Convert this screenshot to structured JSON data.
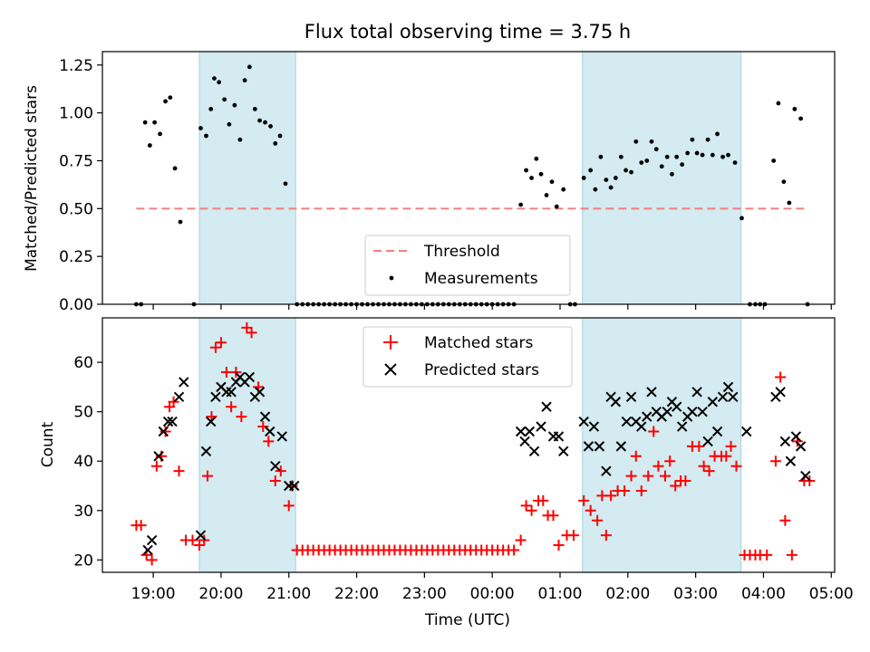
{
  "chart_data": {
    "type": "scatter",
    "title": "Flux total observing time = 3.75 h",
    "xlabel": "Time (UTC)",
    "x_unit": "hours since 18:00 UTC",
    "xlim": [
      0.25,
      11.05
    ],
    "x_ticks": [
      {
        "value": 1,
        "label": "19:00"
      },
      {
        "value": 2,
        "label": "20:00"
      },
      {
        "value": 3,
        "label": "21:00"
      },
      {
        "value": 4,
        "label": "22:00"
      },
      {
        "value": 5,
        "label": "23:00"
      },
      {
        "value": 6,
        "label": "00:00"
      },
      {
        "value": 7,
        "label": "01:00"
      },
      {
        "value": 8,
        "label": "02:00"
      },
      {
        "value": 9,
        "label": "03:00"
      },
      {
        "value": 10,
        "label": "04:00"
      },
      {
        "value": 11,
        "label": "05:00"
      }
    ],
    "shaded_intervals": [
      [
        1.68,
        3.1
      ],
      [
        7.33,
        9.67
      ]
    ],
    "shade_color": "#d3ebf1",
    "top": {
      "ylabel": "Matched/Predicted stars",
      "ylim": [
        0,
        1.32
      ],
      "yticks": [
        "0.00",
        "0.25",
        "0.50",
        "0.75",
        "1.00",
        "1.25"
      ],
      "threshold": {
        "value": 0.5,
        "x_range": [
          0.75,
          10.65
        ],
        "color": "#f08080"
      },
      "legend": {
        "threshold_label": "Threshold",
        "measurements_label": "Measurements",
        "position": "lower-center"
      },
      "measurements": [
        [
          0.75,
          0
        ],
        [
          0.82,
          0
        ],
        [
          0.88,
          0.95
        ],
        [
          0.95,
          0.83
        ],
        [
          1.02,
          0.95
        ],
        [
          1.1,
          0.89
        ],
        [
          1.18,
          1.06
        ],
        [
          1.25,
          1.08
        ],
        [
          1.32,
          0.71
        ],
        [
          1.4,
          0.43
        ],
        [
          1.6,
          0
        ],
        [
          1.7,
          0.92
        ],
        [
          1.78,
          0.88
        ],
        [
          1.85,
          1.02
        ],
        [
          1.9,
          1.18
        ],
        [
          1.97,
          1.16
        ],
        [
          2.05,
          1.07
        ],
        [
          2.12,
          0.94
        ],
        [
          2.2,
          1.04
        ],
        [
          2.28,
          0.86
        ],
        [
          2.35,
          1.17
        ],
        [
          2.42,
          1.24
        ],
        [
          2.5,
          1.02
        ],
        [
          2.57,
          0.96
        ],
        [
          2.65,
          0.95
        ],
        [
          2.73,
          0.93
        ],
        [
          2.8,
          0.84
        ],
        [
          2.87,
          0.88
        ],
        [
          2.95,
          0.63
        ],
        [
          3.12,
          0
        ],
        [
          3.2,
          0
        ],
        [
          3.28,
          0
        ],
        [
          3.36,
          0
        ],
        [
          3.44,
          0
        ],
        [
          3.52,
          0
        ],
        [
          3.6,
          0
        ],
        [
          3.68,
          0
        ],
        [
          3.76,
          0
        ],
        [
          3.84,
          0
        ],
        [
          3.92,
          0
        ],
        [
          4.0,
          0
        ],
        [
          4.08,
          0
        ],
        [
          4.16,
          0
        ],
        [
          4.24,
          0
        ],
        [
          4.32,
          0
        ],
        [
          4.4,
          0
        ],
        [
          4.48,
          0
        ],
        [
          4.56,
          0
        ],
        [
          4.64,
          0
        ],
        [
          4.72,
          0
        ],
        [
          4.8,
          0
        ],
        [
          4.88,
          0
        ],
        [
          4.96,
          0
        ],
        [
          5.04,
          0
        ],
        [
          5.12,
          0
        ],
        [
          5.2,
          0
        ],
        [
          5.28,
          0
        ],
        [
          5.36,
          0
        ],
        [
          5.44,
          0
        ],
        [
          5.52,
          0
        ],
        [
          5.6,
          0
        ],
        [
          5.68,
          0
        ],
        [
          5.76,
          0
        ],
        [
          5.84,
          0
        ],
        [
          5.92,
          0
        ],
        [
          6.0,
          0
        ],
        [
          6.08,
          0
        ],
        [
          6.16,
          0
        ],
        [
          6.24,
          0
        ],
        [
          6.32,
          0
        ],
        [
          6.42,
          0.52
        ],
        [
          6.5,
          0.7
        ],
        [
          6.58,
          0.66
        ],
        [
          6.65,
          0.76
        ],
        [
          6.72,
          0.68
        ],
        [
          6.8,
          0.57
        ],
        [
          6.88,
          0.64
        ],
        [
          6.95,
          0.51
        ],
        [
          7.05,
          0.6
        ],
        [
          7.15,
          0
        ],
        [
          7.22,
          0
        ],
        [
          7.35,
          0.66
        ],
        [
          7.45,
          0.7
        ],
        [
          7.52,
          0.6
        ],
        [
          7.6,
          0.77
        ],
        [
          7.68,
          0.65
        ],
        [
          7.75,
          0.61
        ],
        [
          7.82,
          0.66
        ],
        [
          7.9,
          0.77
        ],
        [
          7.97,
          0.7
        ],
        [
          8.05,
          0.69
        ],
        [
          8.12,
          0.85
        ],
        [
          8.2,
          0.74
        ],
        [
          8.28,
          0.75
        ],
        [
          8.35,
          0.85
        ],
        [
          8.42,
          0.81
        ],
        [
          8.5,
          0.72
        ],
        [
          8.58,
          0.77
        ],
        [
          8.65,
          0.68
        ],
        [
          8.72,
          0.77
        ],
        [
          8.8,
          0.73
        ],
        [
          8.88,
          0.79
        ],
        [
          8.95,
          0.86
        ],
        [
          9.02,
          0.79
        ],
        [
          9.1,
          0.78
        ],
        [
          9.18,
          0.86
        ],
        [
          9.25,
          0.78
        ],
        [
          9.32,
          0.89
        ],
        [
          9.4,
          0.77
        ],
        [
          9.48,
          0.78
        ],
        [
          9.58,
          0.74
        ],
        [
          9.68,
          0.45
        ],
        [
          9.8,
          0
        ],
        [
          9.88,
          0
        ],
        [
          9.95,
          0
        ],
        [
          10.02,
          0
        ],
        [
          10.15,
          0.75
        ],
        [
          10.22,
          1.05
        ],
        [
          10.3,
          0.64
        ],
        [
          10.38,
          0.53
        ],
        [
          10.46,
          1.02
        ],
        [
          10.55,
          0.97
        ],
        [
          10.65,
          0
        ]
      ]
    },
    "bottom": {
      "ylabel": "Count",
      "ylim": [
        17.5,
        69
      ],
      "yticks": [
        "20",
        "30",
        "40",
        "50",
        "60"
      ],
      "legend": {
        "matched_label": "Matched stars",
        "predicted_label": "Predicted stars",
        "position": "upper-center"
      },
      "matched_color": "#ff0000",
      "predicted_color": "#000000",
      "matched": [
        [
          0.75,
          27
        ],
        [
          0.82,
          27
        ],
        [
          0.9,
          21
        ],
        [
          0.98,
          20
        ],
        [
          1.05,
          39
        ],
        [
          1.12,
          41
        ],
        [
          1.18,
          46
        ],
        [
          1.24,
          51
        ],
        [
          1.3,
          52
        ],
        [
          1.38,
          38
        ],
        [
          1.48,
          24
        ],
        [
          1.58,
          24
        ],
        [
          1.68,
          23
        ],
        [
          1.75,
          24
        ],
        [
          1.8,
          37
        ],
        [
          1.86,
          49
        ],
        [
          1.92,
          63
        ],
        [
          2.0,
          64
        ],
        [
          2.08,
          58
        ],
        [
          2.15,
          51
        ],
        [
          2.22,
          58
        ],
        [
          2.3,
          49
        ],
        [
          2.38,
          67
        ],
        [
          2.45,
          66
        ],
        [
          2.55,
          55
        ],
        [
          2.62,
          47
        ],
        [
          2.7,
          44
        ],
        [
          2.8,
          36
        ],
        [
          2.88,
          38
        ],
        [
          3.0,
          31
        ],
        [
          3.05,
          35
        ],
        [
          3.12,
          22
        ],
        [
          3.2,
          22
        ],
        [
          3.28,
          22
        ],
        [
          3.36,
          22
        ],
        [
          3.44,
          22
        ],
        [
          3.52,
          22
        ],
        [
          3.6,
          22
        ],
        [
          3.68,
          22
        ],
        [
          3.76,
          22
        ],
        [
          3.84,
          22
        ],
        [
          3.92,
          22
        ],
        [
          4.0,
          22
        ],
        [
          4.08,
          22
        ],
        [
          4.16,
          22
        ],
        [
          4.24,
          22
        ],
        [
          4.32,
          22
        ],
        [
          4.4,
          22
        ],
        [
          4.48,
          22
        ],
        [
          4.56,
          22
        ],
        [
          4.64,
          22
        ],
        [
          4.72,
          22
        ],
        [
          4.8,
          22
        ],
        [
          4.88,
          22
        ],
        [
          4.96,
          22
        ],
        [
          5.04,
          22
        ],
        [
          5.12,
          22
        ],
        [
          5.2,
          22
        ],
        [
          5.28,
          22
        ],
        [
          5.36,
          22
        ],
        [
          5.44,
          22
        ],
        [
          5.52,
          22
        ],
        [
          5.6,
          22
        ],
        [
          5.68,
          22
        ],
        [
          5.76,
          22
        ],
        [
          5.84,
          22
        ],
        [
          5.92,
          22
        ],
        [
          6.0,
          22
        ],
        [
          6.08,
          22
        ],
        [
          6.16,
          22
        ],
        [
          6.24,
          22
        ],
        [
          6.32,
          22
        ],
        [
          6.42,
          24
        ],
        [
          6.5,
          31
        ],
        [
          6.58,
          30
        ],
        [
          6.68,
          32
        ],
        [
          6.75,
          32
        ],
        [
          6.82,
          29
        ],
        [
          6.9,
          29
        ],
        [
          6.98,
          23
        ],
        [
          7.1,
          25
        ],
        [
          7.2,
          25
        ],
        [
          7.35,
          32
        ],
        [
          7.45,
          30
        ],
        [
          7.55,
          28
        ],
        [
          7.62,
          33
        ],
        [
          7.68,
          25
        ],
        [
          7.75,
          33
        ],
        [
          7.85,
          34
        ],
        [
          7.95,
          34
        ],
        [
          8.05,
          37
        ],
        [
          8.12,
          41
        ],
        [
          8.2,
          34
        ],
        [
          8.3,
          37
        ],
        [
          8.38,
          46
        ],
        [
          8.45,
          39
        ],
        [
          8.55,
          37
        ],
        [
          8.62,
          40
        ],
        [
          8.7,
          35
        ],
        [
          8.78,
          36
        ],
        [
          8.85,
          36
        ],
        [
          8.95,
          43
        ],
        [
          9.05,
          43
        ],
        [
          9.12,
          39
        ],
        [
          9.2,
          38
        ],
        [
          9.28,
          41
        ],
        [
          9.38,
          41
        ],
        [
          9.45,
          41
        ],
        [
          9.52,
          43
        ],
        [
          9.6,
          39
        ],
        [
          9.72,
          21
        ],
        [
          9.8,
          21
        ],
        [
          9.88,
          21
        ],
        [
          9.95,
          21
        ],
        [
          10.05,
          21
        ],
        [
          10.18,
          40
        ],
        [
          10.25,
          57
        ],
        [
          10.32,
          28
        ],
        [
          10.42,
          21
        ],
        [
          10.5,
          44
        ],
        [
          10.6,
          36
        ],
        [
          10.68,
          36
        ]
      ],
      "predicted": [
        [
          0.92,
          22
        ],
        [
          0.98,
          24
        ],
        [
          1.08,
          41
        ],
        [
          1.15,
          46
        ],
        [
          1.22,
          48
        ],
        [
          1.28,
          48
        ],
        [
          1.38,
          53
        ],
        [
          1.45,
          56
        ],
        [
          1.7,
          25
        ],
        [
          1.78,
          42
        ],
        [
          1.85,
          48
        ],
        [
          1.92,
          53
        ],
        [
          2.0,
          55
        ],
        [
          2.08,
          54
        ],
        [
          2.15,
          54
        ],
        [
          2.22,
          56
        ],
        [
          2.28,
          57
        ],
        [
          2.35,
          56
        ],
        [
          2.42,
          57
        ],
        [
          2.5,
          53
        ],
        [
          2.57,
          54
        ],
        [
          2.65,
          49
        ],
        [
          2.72,
          46
        ],
        [
          2.8,
          39
        ],
        [
          2.9,
          45
        ],
        [
          3.0,
          35
        ],
        [
          3.08,
          35
        ],
        [
          6.42,
          46
        ],
        [
          6.48,
          44
        ],
        [
          6.55,
          46
        ],
        [
          6.62,
          42
        ],
        [
          6.72,
          47
        ],
        [
          6.8,
          51
        ],
        [
          6.9,
          45
        ],
        [
          6.98,
          45
        ],
        [
          7.05,
          42
        ],
        [
          7.35,
          48
        ],
        [
          7.42,
          43
        ],
        [
          7.5,
          47
        ],
        [
          7.58,
          43
        ],
        [
          7.68,
          38
        ],
        [
          7.75,
          53
        ],
        [
          7.82,
          52
        ],
        [
          7.9,
          43
        ],
        [
          7.98,
          48
        ],
        [
          8.05,
          53
        ],
        [
          8.12,
          48
        ],
        [
          8.2,
          47
        ],
        [
          8.28,
          49
        ],
        [
          8.35,
          54
        ],
        [
          8.42,
          50
        ],
        [
          8.5,
          49
        ],
        [
          8.58,
          50
        ],
        [
          8.65,
          52
        ],
        [
          8.72,
          51
        ],
        [
          8.8,
          47
        ],
        [
          8.88,
          49
        ],
        [
          8.95,
          50
        ],
        [
          9.02,
          54
        ],
        [
          9.1,
          50
        ],
        [
          9.18,
          44
        ],
        [
          9.25,
          52
        ],
        [
          9.32,
          46
        ],
        [
          9.4,
          53
        ],
        [
          9.48,
          55
        ],
        [
          9.55,
          53
        ],
        [
          9.75,
          46
        ],
        [
          10.18,
          53
        ],
        [
          10.25,
          54
        ],
        [
          10.32,
          44
        ],
        [
          10.4,
          40
        ],
        [
          10.48,
          45
        ],
        [
          10.55,
          43
        ],
        [
          10.62,
          37
        ]
      ]
    }
  }
}
